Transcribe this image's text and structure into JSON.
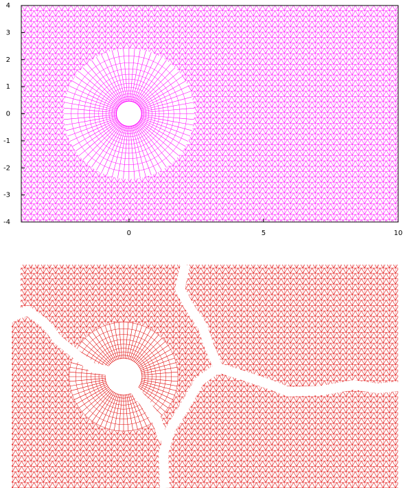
{
  "chart_data": [
    {
      "type": "mesh",
      "color": "#ff00ff",
      "xlim": [
        -4,
        10
      ],
      "ylim": [
        -4,
        4
      ],
      "xticks": [
        0,
        5,
        10
      ],
      "yticks": [
        -4,
        -3,
        -2,
        -1,
        0,
        1,
        2,
        3,
        4
      ]
    },
    {
      "type": "mesh",
      "color": "#e00000"
    }
  ]
}
